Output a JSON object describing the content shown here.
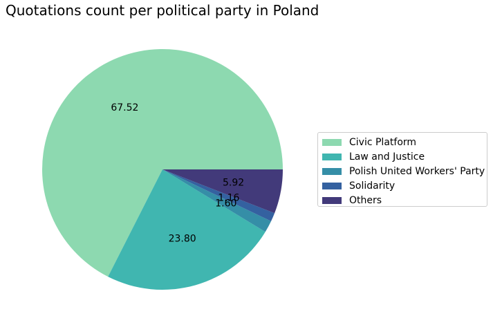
{
  "chart_data": {
    "type": "pie",
    "title": "Quotations count per political party in Poland",
    "slices": [
      {
        "name": "Civic Platform",
        "value": 67.52,
        "label": "67.52",
        "color": "#8dd9b0"
      },
      {
        "name": "Law and Justice",
        "value": 23.8,
        "label": "23.80",
        "color": "#40b6b0"
      },
      {
        "name": "Polish United Workers' Party",
        "value": 1.6,
        "label": "1.60",
        "color": "#358ea7"
      },
      {
        "name": "Solidarity",
        "value": 1.16,
        "label": "1.16",
        "color": "#3461a0"
      },
      {
        "name": "Others",
        "value": 5.92,
        "label": "5.92",
        "color": "#423a7a"
      }
    ],
    "start_angle_deg": 0,
    "direction": "counterclockwise",
    "legend_position": "right"
  }
}
